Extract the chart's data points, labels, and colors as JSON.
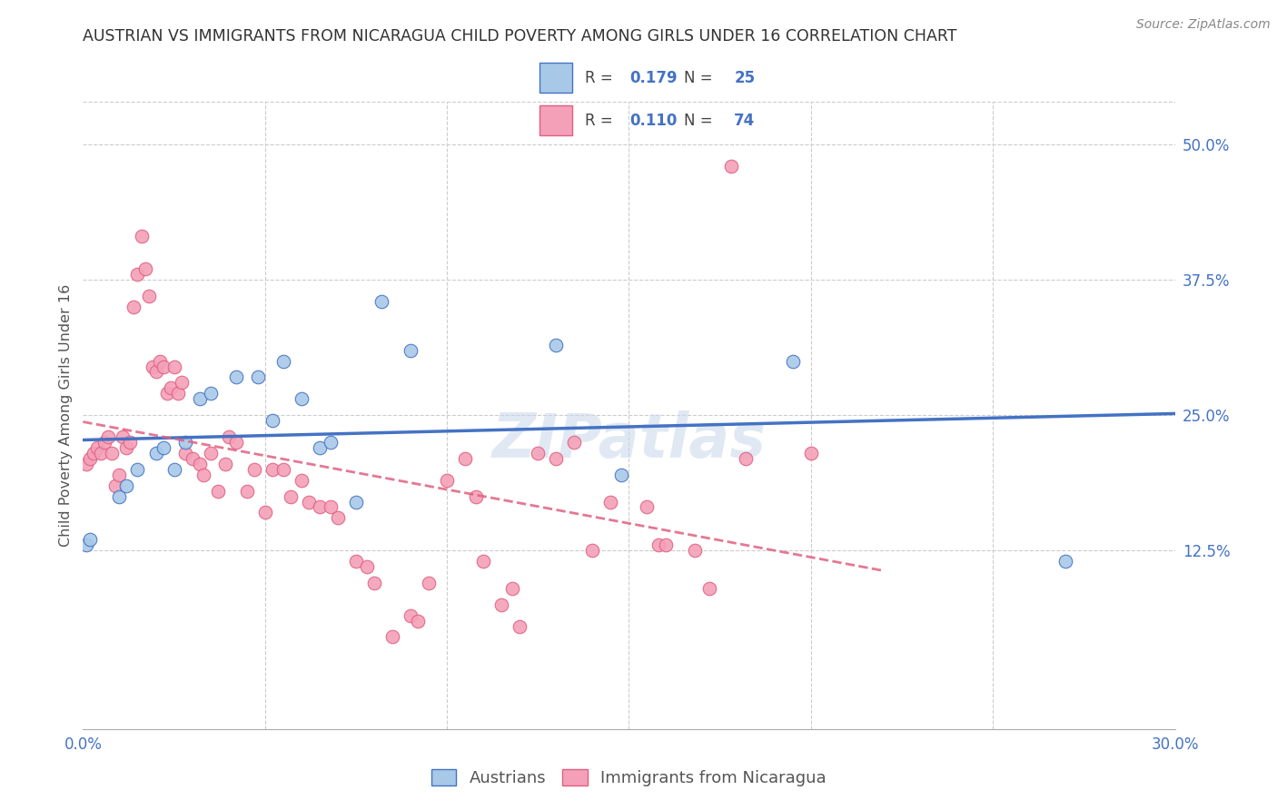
{
  "title": "AUSTRIAN VS IMMIGRANTS FROM NICARAGUA CHILD POVERTY AMONG GIRLS UNDER 16 CORRELATION CHART",
  "source": "Source: ZipAtlas.com",
  "ylabel": "Child Poverty Among Girls Under 16",
  "xlim": [
    0.0,
    0.3
  ],
  "ylim": [
    -0.04,
    0.54
  ],
  "xticks": [
    0.0,
    0.05,
    0.1,
    0.15,
    0.2,
    0.25,
    0.3
  ],
  "xticklabels": [
    "0.0%",
    "",
    "",
    "",
    "",
    "",
    "30.0%"
  ],
  "yticks_right": [
    0.125,
    0.25,
    0.375,
    0.5
  ],
  "yticklabels_right": [
    "12.5%",
    "25.0%",
    "37.5%",
    "50.0%"
  ],
  "legend_r_blue": "0.179",
  "legend_n_blue": "25",
  "legend_r_pink": "0.110",
  "legend_n_pink": "74",
  "color_blue": "#a8c8e8",
  "color_pink": "#f4a0b8",
  "color_blue_line": "#4472c4",
  "color_pink_line": "#e06080",
  "watermark": "ZIPatlas",
  "blue_x": [
    0.001,
    0.002,
    0.01,
    0.012,
    0.015,
    0.02,
    0.022,
    0.025,
    0.028,
    0.032,
    0.035,
    0.042,
    0.048,
    0.052,
    0.055,
    0.06,
    0.065,
    0.068,
    0.075,
    0.082,
    0.09,
    0.13,
    0.148,
    0.195,
    0.27
  ],
  "blue_y": [
    0.13,
    0.135,
    0.175,
    0.185,
    0.2,
    0.215,
    0.22,
    0.2,
    0.225,
    0.265,
    0.27,
    0.285,
    0.285,
    0.245,
    0.3,
    0.265,
    0.22,
    0.225,
    0.17,
    0.355,
    0.31,
    0.315,
    0.195,
    0.3,
    0.115
  ],
  "pink_x": [
    0.001,
    0.002,
    0.003,
    0.004,
    0.005,
    0.006,
    0.007,
    0.008,
    0.009,
    0.01,
    0.011,
    0.012,
    0.013,
    0.014,
    0.015,
    0.016,
    0.017,
    0.018,
    0.019,
    0.02,
    0.021,
    0.022,
    0.023,
    0.024,
    0.025,
    0.026,
    0.027,
    0.028,
    0.03,
    0.032,
    0.033,
    0.035,
    0.037,
    0.039,
    0.04,
    0.042,
    0.045,
    0.047,
    0.05,
    0.052,
    0.055,
    0.057,
    0.06,
    0.062,
    0.065,
    0.068,
    0.07,
    0.075,
    0.078,
    0.08,
    0.085,
    0.09,
    0.092,
    0.095,
    0.1,
    0.105,
    0.108,
    0.11,
    0.115,
    0.118,
    0.12,
    0.125,
    0.13,
    0.135,
    0.14,
    0.145,
    0.155,
    0.158,
    0.16,
    0.168,
    0.172,
    0.178,
    0.182,
    0.2
  ],
  "pink_y": [
    0.205,
    0.21,
    0.215,
    0.22,
    0.215,
    0.225,
    0.23,
    0.215,
    0.185,
    0.195,
    0.23,
    0.22,
    0.225,
    0.35,
    0.38,
    0.415,
    0.385,
    0.36,
    0.295,
    0.29,
    0.3,
    0.295,
    0.27,
    0.275,
    0.295,
    0.27,
    0.28,
    0.215,
    0.21,
    0.205,
    0.195,
    0.215,
    0.18,
    0.205,
    0.23,
    0.225,
    0.18,
    0.2,
    0.16,
    0.2,
    0.2,
    0.175,
    0.19,
    0.17,
    0.165,
    0.165,
    0.155,
    0.115,
    0.11,
    0.095,
    0.045,
    0.065,
    0.06,
    0.095,
    0.19,
    0.21,
    0.175,
    0.115,
    0.075,
    0.09,
    0.055,
    0.215,
    0.21,
    0.225,
    0.125,
    0.17,
    0.165,
    0.13,
    0.13,
    0.125,
    0.09,
    0.48,
    0.21,
    0.215
  ]
}
